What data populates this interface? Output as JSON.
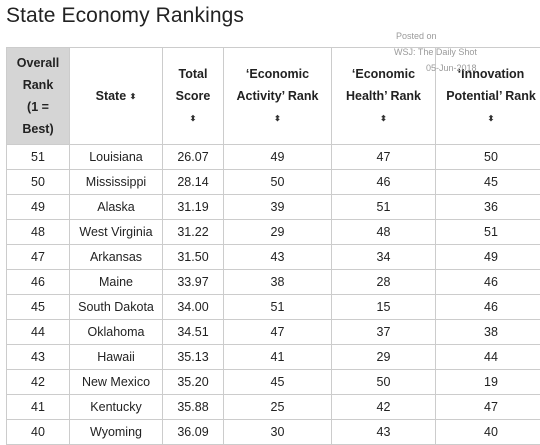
{
  "title": "State Economy Rankings",
  "watermark": {
    "line1": "Posted on",
    "line2": "WSJ: The Daily Shot",
    "line3": "05-Jun-2018"
  },
  "columns": [
    {
      "lines": [
        "Overall",
        "Rank",
        "(1 =",
        "Best)"
      ],
      "sortable": false
    },
    {
      "lines": [
        "State"
      ],
      "sortable": true
    },
    {
      "lines": [
        "Total",
        "Score"
      ],
      "sortable": true
    },
    {
      "lines": [
        "‘Economic",
        "Activity’ Rank"
      ],
      "sortable": true
    },
    {
      "lines": [
        "‘Economic",
        "Health’ Rank"
      ],
      "sortable": true
    },
    {
      "lines": [
        "‘Innovation",
        "Potential’ Rank"
      ],
      "sortable": true
    }
  ],
  "sort_icon": "sort-updown-icon",
  "sort_glyph": "⬍",
  "rows": [
    [
      "51",
      "Louisiana",
      "26.07",
      "49",
      "47",
      "50"
    ],
    [
      "50",
      "Mississippi",
      "28.14",
      "50",
      "46",
      "45"
    ],
    [
      "49",
      "Alaska",
      "31.19",
      "39",
      "51",
      "36"
    ],
    [
      "48",
      "West Virginia",
      "31.22",
      "29",
      "48",
      "51"
    ],
    [
      "47",
      "Arkansas",
      "31.50",
      "43",
      "34",
      "49"
    ],
    [
      "46",
      "Maine",
      "33.97",
      "38",
      "28",
      "46"
    ],
    [
      "45",
      "South Dakota",
      "34.00",
      "51",
      "15",
      "46"
    ],
    [
      "44",
      "Oklahoma",
      "34.51",
      "47",
      "37",
      "38"
    ],
    [
      "43",
      "Hawaii",
      "35.13",
      "41",
      "29",
      "44"
    ],
    [
      "42",
      "New Mexico",
      "35.20",
      "45",
      "50",
      "19"
    ],
    [
      "41",
      "Kentucky",
      "35.88",
      "25",
      "42",
      "47"
    ],
    [
      "40",
      "Wyoming",
      "36.09",
      "30",
      "43",
      "40"
    ]
  ]
}
